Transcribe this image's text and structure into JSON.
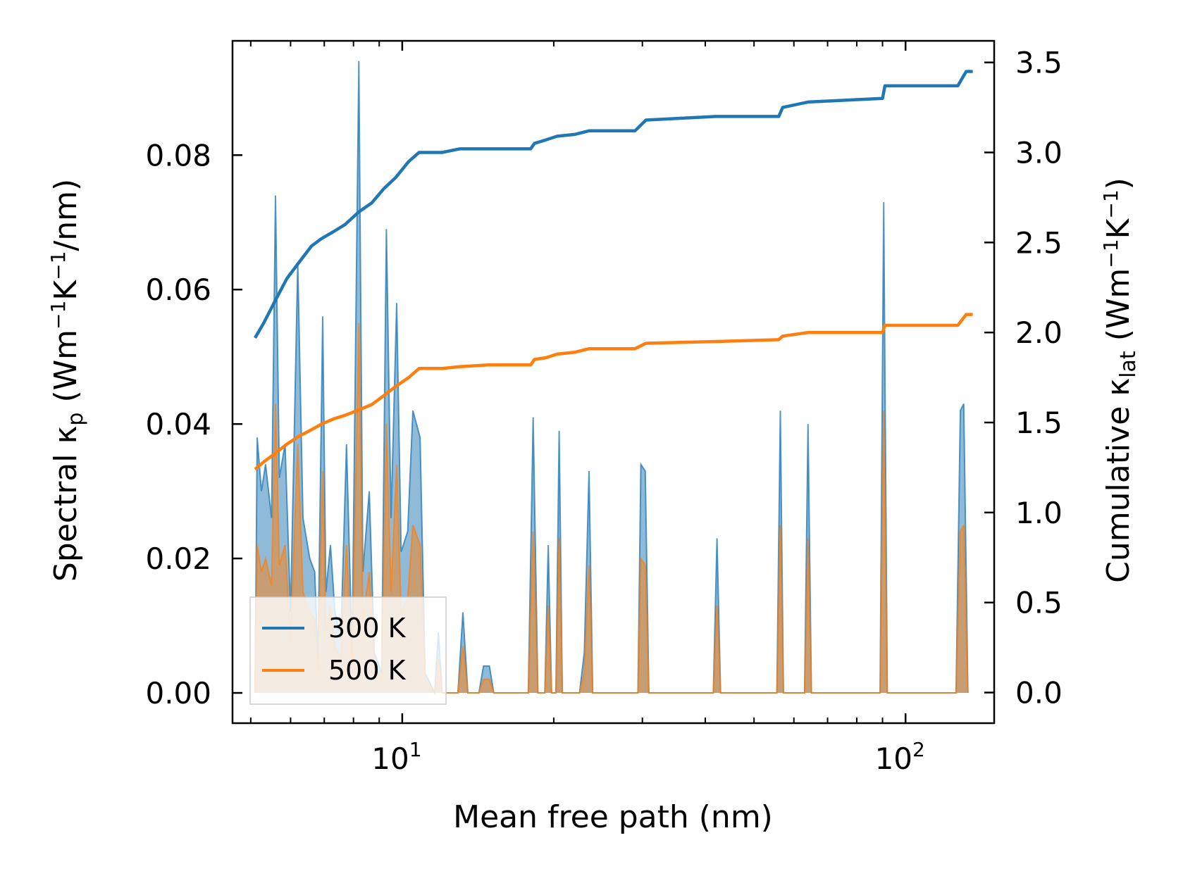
{
  "chart_data": {
    "type": "line",
    "x_scale": "log",
    "xlim": [
      4.6,
      150
    ],
    "ylim_left": [
      -0.0045,
      0.097
    ],
    "ylim_right": [
      -0.17,
      3.62
    ],
    "xlabel": "Mean free path (nm)",
    "ylabel_left": {
      "main": "Spectral κ",
      "sub": "p",
      "unit_a": " (Wm",
      "sup_a": "−1",
      "unit_b": "K",
      "sup_b": "−1",
      "unit_c": "/nm)"
    },
    "ylabel_right": {
      "main": "Cumulative κ",
      "sub": "lat",
      "unit_a": " (Wm",
      "sup_a": "−1",
      "unit_b": "K",
      "sup_b": "−1",
      "unit_c": ")"
    },
    "x_ticks": [
      {
        "value": 10,
        "base": "10",
        "exp": "1"
      },
      {
        "value": 100,
        "base": "10",
        "exp": "2"
      }
    ],
    "y_ticks_left": [
      {
        "value": 0.0,
        "label": "0.00"
      },
      {
        "value": 0.02,
        "label": "0.02"
      },
      {
        "value": 0.04,
        "label": "0.04"
      },
      {
        "value": 0.06,
        "label": "0.06"
      },
      {
        "value": 0.08,
        "label": "0.08"
      }
    ],
    "y_ticks_right": [
      {
        "value": 0.0,
        "label": "0.0"
      },
      {
        "value": 0.5,
        "label": "0.5"
      },
      {
        "value": 1.0,
        "label": "1.0"
      },
      {
        "value": 1.5,
        "label": "1.5"
      },
      {
        "value": 2.0,
        "label": "2.0"
      },
      {
        "value": 2.5,
        "label": "2.5"
      },
      {
        "value": 3.0,
        "label": "3.0"
      },
      {
        "value": 3.5,
        "label": "3.5"
      }
    ],
    "legend": {
      "position": "lower-left",
      "entries": [
        "300 K",
        "500 K"
      ]
    },
    "series": [
      {
        "name": "300 K",
        "color": "#1f77b4",
        "spectral": [
          [
            5.1,
            0
          ],
          [
            5.15,
            0.038
          ],
          [
            5.25,
            0.03
          ],
          [
            5.35,
            0.034
          ],
          [
            5.5,
            0.026
          ],
          [
            5.6,
            0.074
          ],
          [
            5.7,
            0.032
          ],
          [
            5.85,
            0.037
          ],
          [
            6.0,
            0.012
          ],
          [
            6.2,
            0.064
          ],
          [
            6.35,
            0.026
          ],
          [
            6.55,
            0.02
          ],
          [
            6.7,
            0.018
          ],
          [
            6.8,
            0.005
          ],
          [
            6.95,
            0.056
          ],
          [
            7.05,
            0.015
          ],
          [
            7.2,
            0.022
          ],
          [
            7.35,
            0.012
          ],
          [
            7.55,
            0.008
          ],
          [
            7.75,
            0.037
          ],
          [
            7.95,
            0.006
          ],
          [
            8.2,
            0.094
          ],
          [
            8.35,
            0.018
          ],
          [
            8.6,
            0.03
          ],
          [
            8.8,
            0.006
          ],
          [
            9.1,
            0.003
          ],
          [
            9.3,
            0.069
          ],
          [
            9.5,
            0.026
          ],
          [
            9.75,
            0.058
          ],
          [
            9.95,
            0.021
          ],
          [
            10.25,
            0.024
          ],
          [
            10.5,
            0.042
          ],
          [
            10.85,
            0.038
          ],
          [
            11.1,
            0.003
          ],
          [
            11.6,
            0.0
          ],
          [
            11.8,
            0.009
          ],
          [
            12.0,
            0.0
          ],
          [
            12.9,
            0.0
          ],
          [
            13.2,
            0.012
          ],
          [
            13.5,
            0.0
          ],
          [
            14.2,
            0.0
          ],
          [
            14.5,
            0.004
          ],
          [
            14.9,
            0.004
          ],
          [
            15.2,
            0.0
          ],
          [
            17.8,
            0.0
          ],
          [
            18.2,
            0.041
          ],
          [
            18.6,
            0.0
          ],
          [
            19.2,
            0.0
          ],
          [
            19.5,
            0.022
          ],
          [
            19.8,
            0.0
          ],
          [
            20.2,
            0.0
          ],
          [
            20.5,
            0.039
          ],
          [
            20.8,
            0.0
          ],
          [
            22.5,
            0.0
          ],
          [
            23.0,
            0.006
          ],
          [
            23.5,
            0.033
          ],
          [
            23.9,
            0.0
          ],
          [
            29.4,
            0.0
          ],
          [
            29.8,
            0.034
          ],
          [
            30.4,
            0.033
          ],
          [
            30.9,
            0.0
          ],
          [
            41.5,
            0.0
          ],
          [
            42.2,
            0.023
          ],
          [
            42.9,
            0.0
          ],
          [
            55.5,
            0.0
          ],
          [
            56.4,
            0.042
          ],
          [
            57.2,
            0.0
          ],
          [
            63.0,
            0.0
          ],
          [
            64.0,
            0.04
          ],
          [
            65.0,
            0.0
          ],
          [
            89.0,
            0.0
          ],
          [
            90.5,
            0.073
          ],
          [
            92.0,
            0.0
          ],
          [
            126.0,
            0.0
          ],
          [
            128.5,
            0.042
          ],
          [
            130.5,
            0.043
          ],
          [
            133.0,
            0.0
          ]
        ],
        "cumulative": [
          [
            5.1,
            1.97
          ],
          [
            5.3,
            2.05
          ],
          [
            5.6,
            2.18
          ],
          [
            5.9,
            2.3
          ],
          [
            6.2,
            2.38
          ],
          [
            6.6,
            2.48
          ],
          [
            6.9,
            2.52
          ],
          [
            7.3,
            2.56
          ],
          [
            7.7,
            2.6
          ],
          [
            8.2,
            2.67
          ],
          [
            8.7,
            2.72
          ],
          [
            9.2,
            2.8
          ],
          [
            9.7,
            2.86
          ],
          [
            10.3,
            2.95
          ],
          [
            10.8,
            3.0
          ],
          [
            12.0,
            3.0
          ],
          [
            13.0,
            3.02
          ],
          [
            14.8,
            3.02
          ],
          [
            18.0,
            3.02
          ],
          [
            18.3,
            3.05
          ],
          [
            19.3,
            3.07
          ],
          [
            20.3,
            3.09
          ],
          [
            22.0,
            3.1
          ],
          [
            23.5,
            3.12
          ],
          [
            29.0,
            3.12
          ],
          [
            30.5,
            3.18
          ],
          [
            42.0,
            3.2
          ],
          [
            56.0,
            3.2
          ],
          [
            57.0,
            3.25
          ],
          [
            64.0,
            3.28
          ],
          [
            90.0,
            3.3
          ],
          [
            91.0,
            3.37
          ],
          [
            127.0,
            3.37
          ],
          [
            132.0,
            3.45
          ],
          [
            136.0,
            3.45
          ]
        ]
      },
      {
        "name": "500 K",
        "color": "#ff7f0e",
        "spectral": [
          [
            5.1,
            0
          ],
          [
            5.15,
            0.022
          ],
          [
            5.25,
            0.018
          ],
          [
            5.35,
            0.02
          ],
          [
            5.5,
            0.016
          ],
          [
            5.6,
            0.043
          ],
          [
            5.7,
            0.019
          ],
          [
            5.85,
            0.022
          ],
          [
            6.0,
            0.008
          ],
          [
            6.2,
            0.037
          ],
          [
            6.35,
            0.015
          ],
          [
            6.55,
            0.012
          ],
          [
            6.7,
            0.011
          ],
          [
            6.8,
            0.003
          ],
          [
            6.95,
            0.033
          ],
          [
            7.05,
            0.009
          ],
          [
            7.2,
            0.013
          ],
          [
            7.35,
            0.007
          ],
          [
            7.55,
            0.005
          ],
          [
            7.75,
            0.022
          ],
          [
            7.95,
            0.004
          ],
          [
            8.2,
            0.055
          ],
          [
            8.35,
            0.011
          ],
          [
            8.6,
            0.018
          ],
          [
            8.8,
            0.004
          ],
          [
            9.1,
            0.002
          ],
          [
            9.3,
            0.04
          ],
          [
            9.5,
            0.015
          ],
          [
            9.75,
            0.034
          ],
          [
            9.95,
            0.012
          ],
          [
            10.25,
            0.014
          ],
          [
            10.5,
            0.025
          ],
          [
            10.85,
            0.022
          ],
          [
            11.1,
            0.002
          ],
          [
            11.6,
            0.0
          ],
          [
            11.8,
            0.005
          ],
          [
            12.0,
            0.0
          ],
          [
            12.9,
            0.0
          ],
          [
            13.2,
            0.007
          ],
          [
            13.5,
            0.0
          ],
          [
            14.2,
            0.0
          ],
          [
            14.5,
            0.002
          ],
          [
            14.9,
            0.002
          ],
          [
            15.2,
            0.0
          ],
          [
            17.8,
            0.0
          ],
          [
            18.2,
            0.024
          ],
          [
            18.6,
            0.0
          ],
          [
            19.2,
            0.0
          ],
          [
            19.5,
            0.013
          ],
          [
            19.8,
            0.0
          ],
          [
            20.2,
            0.0
          ],
          [
            20.5,
            0.023
          ],
          [
            20.8,
            0.0
          ],
          [
            22.5,
            0.0
          ],
          [
            23.0,
            0.003
          ],
          [
            23.5,
            0.019
          ],
          [
            23.9,
            0.0
          ],
          [
            29.4,
            0.0
          ],
          [
            29.8,
            0.02
          ],
          [
            30.4,
            0.019
          ],
          [
            30.9,
            0.0
          ],
          [
            41.5,
            0.0
          ],
          [
            42.2,
            0.013
          ],
          [
            42.9,
            0.0
          ],
          [
            55.5,
            0.0
          ],
          [
            56.4,
            0.025
          ],
          [
            57.2,
            0.0
          ],
          [
            63.0,
            0.0
          ],
          [
            64.0,
            0.023
          ],
          [
            65.0,
            0.0
          ],
          [
            89.0,
            0.0
          ],
          [
            90.5,
            0.042
          ],
          [
            92.0,
            0.0
          ],
          [
            126.0,
            0.0
          ],
          [
            128.5,
            0.024
          ],
          [
            130.5,
            0.025
          ],
          [
            133.0,
            0.0
          ]
        ],
        "cumulative": [
          [
            5.1,
            1.24
          ],
          [
            5.3,
            1.28
          ],
          [
            5.6,
            1.33
          ],
          [
            5.9,
            1.38
          ],
          [
            6.2,
            1.42
          ],
          [
            6.6,
            1.46
          ],
          [
            6.9,
            1.49
          ],
          [
            7.3,
            1.52
          ],
          [
            7.7,
            1.54
          ],
          [
            8.2,
            1.57
          ],
          [
            8.7,
            1.6
          ],
          [
            9.2,
            1.65
          ],
          [
            9.7,
            1.7
          ],
          [
            10.3,
            1.75
          ],
          [
            10.8,
            1.8
          ],
          [
            12.0,
            1.8
          ],
          [
            13.0,
            1.81
          ],
          [
            14.8,
            1.82
          ],
          [
            18.0,
            1.82
          ],
          [
            18.3,
            1.85
          ],
          [
            19.3,
            1.86
          ],
          [
            20.3,
            1.88
          ],
          [
            22.0,
            1.89
          ],
          [
            23.5,
            1.91
          ],
          [
            29.0,
            1.91
          ],
          [
            30.5,
            1.94
          ],
          [
            42.0,
            1.95
          ],
          [
            56.0,
            1.96
          ],
          [
            57.0,
            1.98
          ],
          [
            64.0,
            2.0
          ],
          [
            90.0,
            2.0
          ],
          [
            91.0,
            2.04
          ],
          [
            127.0,
            2.04
          ],
          [
            132.0,
            2.1
          ],
          [
            136.0,
            2.1
          ]
        ]
      }
    ]
  }
}
